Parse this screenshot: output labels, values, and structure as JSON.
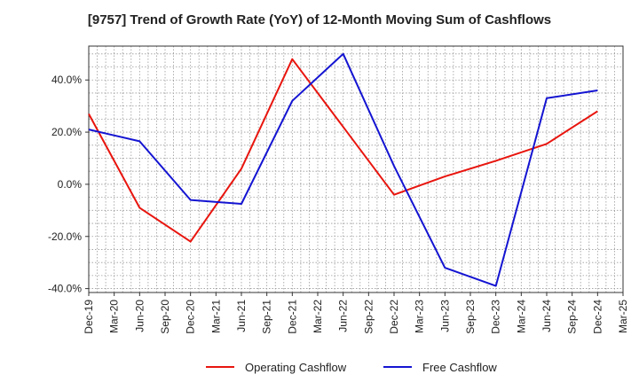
{
  "chart_data": {
    "type": "line",
    "title": "[9757]  Trend of Growth Rate (YoY) of 12-Month Moving Sum of Cashflows",
    "xlabel": "",
    "ylabel": "",
    "x_ticks": [
      "Dec-19",
      "Mar-20",
      "Jun-20",
      "Sep-20",
      "Dec-20",
      "Mar-21",
      "Jun-21",
      "Sep-21",
      "Dec-21",
      "Mar-22",
      "Jun-22",
      "Sep-22",
      "Dec-22",
      "Mar-23",
      "Jun-23",
      "Sep-23",
      "Dec-23",
      "Mar-24",
      "Jun-24",
      "Sep-24",
      "Dec-24",
      "Mar-25"
    ],
    "y_ticks": [
      "40.0%",
      "20.0%",
      "0.0%",
      "-20.0%",
      "-40.0%"
    ],
    "y_tick_values": [
      40,
      20,
      0,
      -20,
      -40
    ],
    "ylim": [
      -41.5,
      53
    ],
    "grid": true,
    "legend_position": "bottom",
    "series": [
      {
        "name": "Operating Cashflow",
        "color": "#e8150e",
        "x": [
          "Dec-19",
          "Jun-20",
          "Dec-20",
          "Jun-21",
          "Dec-21",
          "Jun-22",
          "Dec-22",
          "Jun-23",
          "Dec-23",
          "Jun-24",
          "Dec-24"
        ],
        "values": [
          27.0,
          -9.0,
          -22.0,
          6.0,
          48.0,
          22.0,
          -4.0,
          3.0,
          9.0,
          15.5,
          28.0
        ]
      },
      {
        "name": "Free Cashflow",
        "color": "#1414d2",
        "x": [
          "Dec-19",
          "Jun-20",
          "Dec-20",
          "Jun-21",
          "Dec-21",
          "Jun-22",
          "Dec-22",
          "Jun-23",
          "Dec-23",
          "Jun-24",
          "Dec-24"
        ],
        "values": [
          21.0,
          16.5,
          -6.0,
          -7.5,
          32.0,
          50.0,
          7.0,
          -32.0,
          -39.0,
          33.0,
          36.0
        ]
      }
    ]
  }
}
